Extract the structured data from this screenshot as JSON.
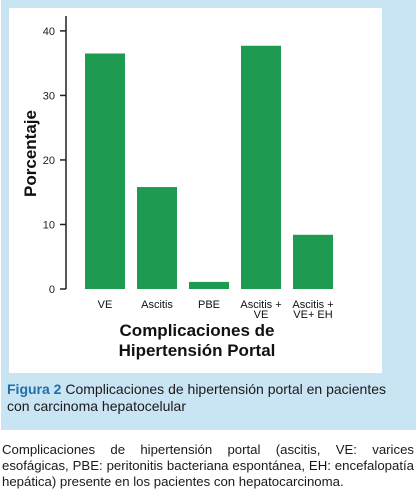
{
  "chart_data": {
    "type": "bar",
    "title": "",
    "ylabel": "Porcentaje",
    "xlabel": [
      "Complicaciones de",
      "Hipertensión Portal"
    ],
    "categories": [
      [
        "VE"
      ],
      [
        "Ascitis"
      ],
      [
        "PBE"
      ],
      [
        "Ascitis +",
        "VE"
      ],
      [
        "Ascitis +",
        "VE+ EH"
      ]
    ],
    "values": [
      36.5,
      15.8,
      1.1,
      37.7,
      8.4
    ],
    "ylim": [
      0,
      42
    ],
    "yticks": [
      0,
      10,
      20,
      30,
      40
    ],
    "grid": false,
    "bar_color": "#1e9b51"
  },
  "caption": {
    "label": "Figura 2",
    "text": " Complicaciones de hipertensión portal en pacientes con carcinoma hepatocelular"
  },
  "footnote": "Complicaciones de hipertensión portal (ascitis, VE: varices esofágicas, PBE: peritonitis bacteriana espontánea, EH: encefalopatía hepática) presente en los pacientes con hepatocarcinoma.",
  "colors": {
    "panel": "#c9e4f3",
    "caption_label": "#1f6fa8"
  }
}
